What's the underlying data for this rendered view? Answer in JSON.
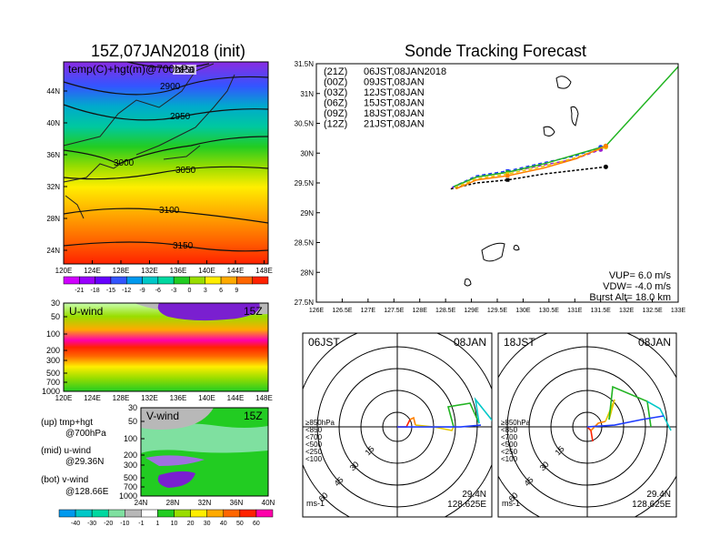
{
  "left_title": "15Z,07JAN2018 (init)",
  "right_title": "Sonde Tracking Forecast",
  "map_panel": {
    "label": "temp(C)+hgt(m)@700hPa",
    "contour_labels": [
      "2850",
      "2900",
      "2950",
      "3000",
      "3050",
      "3100",
      "3150"
    ],
    "lat_ticks": [
      "44N",
      "40N",
      "36N",
      "32N",
      "28N",
      "24N"
    ],
    "lon_ticks": [
      "120E",
      "124E",
      "128E",
      "132E",
      "136E",
      "140E",
      "144E",
      "148E"
    ]
  },
  "temp_colorbar": {
    "labels": [
      "-21",
      "-18",
      "-15",
      "-12",
      "-9",
      "-6",
      "-3",
      "0",
      "3",
      "6",
      "9"
    ],
    "colors": [
      "#d000ff",
      "#9900ff",
      "#6600ff",
      "#3355ff",
      "#0099ee",
      "#00c8c8",
      "#00d8a0",
      "#22cc22",
      "#99dd00",
      "#ffee00",
      "#ffaa00",
      "#ff6600",
      "#ff2200"
    ]
  },
  "uwind_panel": {
    "label": "U-wind",
    "time": "15Z",
    "p_ticks": [
      "30",
      "50",
      "100",
      "200",
      "300",
      "500",
      "700",
      "1000"
    ],
    "lon_ticks": [
      "120E",
      "124E",
      "128E",
      "132E",
      "136E",
      "140E",
      "144E",
      "148E"
    ]
  },
  "vwind_panel": {
    "label": "V-wind",
    "time": "15Z",
    "p_ticks": [
      "30",
      "50",
      "100",
      "200",
      "300",
      "500",
      "700",
      "1000"
    ],
    "lat_ticks": [
      "24N",
      "28N",
      "32N",
      "36N",
      "40N"
    ]
  },
  "side_notes": {
    "up_line1": "(up) tmp+hgt",
    "up_line2": "@700hPa",
    "mid_line1": "(mid) u-wind",
    "mid_line2": "@29.36N",
    "bot_line1": "(bot) v-wind",
    "bot_line2": "@128.66E"
  },
  "wind_colorbar": {
    "labels": [
      "-40",
      "-30",
      "-20",
      "-10",
      "-1",
      "1",
      "10",
      "20",
      "30",
      "40",
      "50",
      "60"
    ],
    "colors": [
      "#0099ee",
      "#00c8c8",
      "#00d8a0",
      "#7fe0a0",
      "#b8b8b8",
      "#ffffff",
      "#22cc22",
      "#99dd00",
      "#ffee00",
      "#ffaa00",
      "#ff6600",
      "#ff2200",
      "#ff00aa"
    ]
  },
  "track": {
    "lat_ticks": [
      "31.5N",
      "31N",
      "30.5N",
      "30N",
      "29.5N",
      "29N",
      "28.5N",
      "28N",
      "27.5N"
    ],
    "lon_ticks": [
      "126E",
      "126.5E",
      "127E",
      "127.5E",
      "128E",
      "128.5E",
      "129E",
      "129.5E",
      "130E",
      "130.5E",
      "131E",
      "131.5E",
      "132E",
      "132.5E",
      "133E"
    ],
    "legend": [
      {
        "run": "(21Z)",
        "time": "06JST,08JAN2018",
        "color": "#000000"
      },
      {
        "run": "(00Z)",
        "time": "09JST,08JAN",
        "color": "#9b1fd0"
      },
      {
        "run": "(03Z)",
        "time": "12JST,08JAN",
        "color": "#1e3cff"
      },
      {
        "run": "(06Z)",
        "time": "15JST,08JAN",
        "color": "#22b422"
      },
      {
        "run": "(09Z)",
        "time": "18JST,08JAN",
        "color": "#e6c800"
      },
      {
        "run": "(12Z)",
        "time": "21JST,08JAN",
        "color": "#ff8000"
      }
    ],
    "vup": "VUP=  6.0  m/s",
    "vdw": "VDW= -4.0  m/s",
    "burst": "Burst Alt=  18.0  km"
  },
  "chart_data": [
    {
      "type": "line",
      "title": "Sonde Tracking Forecast",
      "xlim": [
        126,
        133
      ],
      "ylim": [
        27.5,
        31.5
      ],
      "series": [
        {
          "name": "(21Z) 06JST,08JAN2018",
          "color": "#000000",
          "points": [
            [
              128.6,
              29.4
            ],
            [
              129.1,
              29.5
            ],
            [
              129.7,
              29.55
            ],
            [
              130.4,
              29.65
            ],
            [
              131.1,
              29.72
            ],
            [
              131.6,
              29.77
            ]
          ]
        },
        {
          "name": "(00Z) 09JST,08JAN",
          "color": "#9b1fd0",
          "points": [
            [
              128.62,
              29.42
            ],
            [
              129.1,
              29.6
            ],
            [
              129.7,
              29.68
            ],
            [
              130.4,
              29.8
            ],
            [
              131.0,
              29.9
            ],
            [
              131.5,
              30.06
            ]
          ]
        },
        {
          "name": "(03Z) 12JST,08JAN",
          "color": "#1e3cff",
          "points": [
            [
              128.64,
              29.43
            ],
            [
              129.1,
              29.62
            ],
            [
              129.7,
              29.7
            ],
            [
              130.4,
              29.84
            ],
            [
              131.0,
              29.95
            ],
            [
              131.5,
              30.1
            ]
          ]
        },
        {
          "name": "(06Z) 15JST,08JAN",
          "color": "#22b422",
          "points": [
            [
              128.66,
              29.44
            ],
            [
              129.1,
              29.6
            ],
            [
              129.7,
              29.68
            ],
            [
              130.4,
              29.82
            ],
            [
              131.0,
              29.97
            ],
            [
              131.6,
              30.12
            ],
            [
              133.0,
              31.45
            ]
          ]
        },
        {
          "name": "(09Z) 18JST,08JAN",
          "color": "#e6c800",
          "points": [
            [
              128.68,
              29.42
            ],
            [
              129.1,
              29.57
            ],
            [
              129.7,
              29.65
            ],
            [
              130.4,
              29.78
            ],
            [
              131.0,
              29.92
            ],
            [
              131.6,
              30.1
            ]
          ]
        },
        {
          "name": "(12Z) 21JST,08JAN",
          "color": "#ff8000",
          "points": [
            [
              128.7,
              29.4
            ],
            [
              129.1,
              29.55
            ],
            [
              129.7,
              29.62
            ],
            [
              130.4,
              29.75
            ],
            [
              131.0,
              29.9
            ],
            [
              131.6,
              30.12
            ]
          ]
        }
      ]
    }
  ],
  "hodo_left": {
    "time": "06JST",
    "date": "08JAN",
    "unit": "ms-1",
    "lat": "29.4N",
    "lon": "128.625E",
    "ring_labels": [
      "15",
      "30",
      "45",
      "60"
    ],
    "legend": [
      {
        "label": "≥850hPa",
        "color": "#ff2200"
      },
      {
        "label": "<850",
        "color": "#ff8000"
      },
      {
        "label": "<700",
        "color": "#e6c800"
      },
      {
        "label": "<500",
        "color": "#22b422"
      },
      {
        "label": "<250",
        "color": "#00c8c8"
      },
      {
        "label": "<100",
        "color": "#1e3cff"
      }
    ]
  },
  "hodo_right": {
    "time": "18JST",
    "date": "08JAN",
    "unit": "ms-1",
    "lat": "29.4N",
    "lon": "128.625E",
    "ring_labels": [
      "15",
      "30",
      "45",
      "60"
    ],
    "legend": [
      {
        "label": "≥850hPa",
        "color": "#ff2200"
      },
      {
        "label": "<850",
        "color": "#ff8000"
      },
      {
        "label": "<700",
        "color": "#e6c800"
      },
      {
        "label": "<500",
        "color": "#22b422"
      },
      {
        "label": "<250",
        "color": "#00c8c8"
      },
      {
        "label": "<100",
        "color": "#1e3cff"
      }
    ]
  }
}
